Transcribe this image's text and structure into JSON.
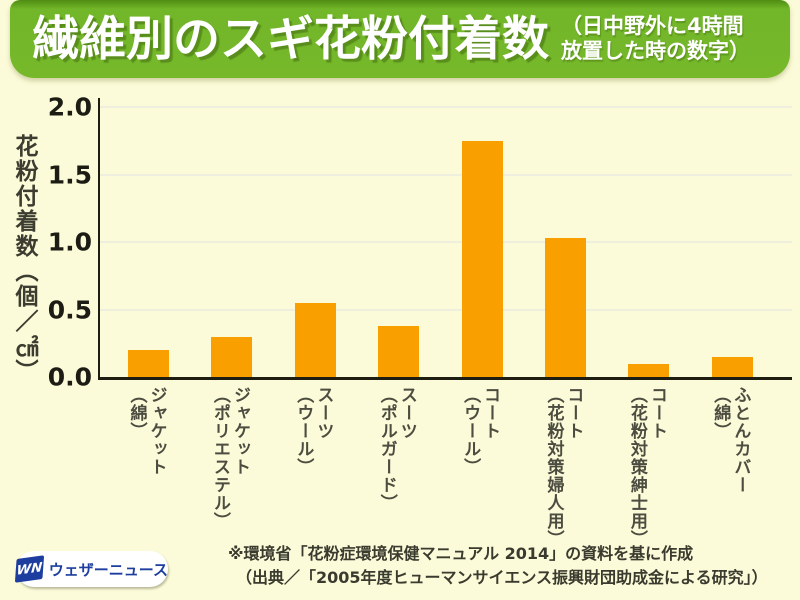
{
  "header": {
    "title": "繊維別のスギ花粉付着数",
    "subtitle": "（日中野外に4時間\n放置した時の数字）",
    "bg_color": "#76b82a",
    "text_color": "#ffffff"
  },
  "chart_data": {
    "type": "bar",
    "title": "繊維別のスギ花粉付着数（日中野外に4時間放置した時の数字）",
    "ylabel": "花粉付着数（個／㎠）",
    "xlabel": "",
    "categories": [
      "ジャケット（綿）",
      "ジャケット（ポリエステル）",
      "スーツ（ウール）",
      "スーツ（ポルガード）",
      "コート（ウール）",
      "コート（花粉対策婦人用）",
      "コート（花粉対策紳士用）",
      "ふとんカバー（綿）"
    ],
    "values": [
      0.2,
      0.3,
      0.55,
      0.38,
      1.75,
      1.03,
      0.1,
      0.15
    ],
    "ylim": [
      0,
      2.0
    ],
    "yticks": [
      0.0,
      0.5,
      1.0,
      1.5,
      2.0
    ],
    "grid": true,
    "legend": "none",
    "bar_color": "#f9a000",
    "background_color": "#fbfbd9"
  },
  "footer": {
    "source_line1": "※環境省「花粉症環境保健マニュアル 2014」の資料を基に作成",
    "source_line2": "（出典／「2005年度ヒューマンサイエンス振興財団助成金による研究」）",
    "logo_mark": "WN",
    "logo_text": "ウェザーニュース"
  }
}
